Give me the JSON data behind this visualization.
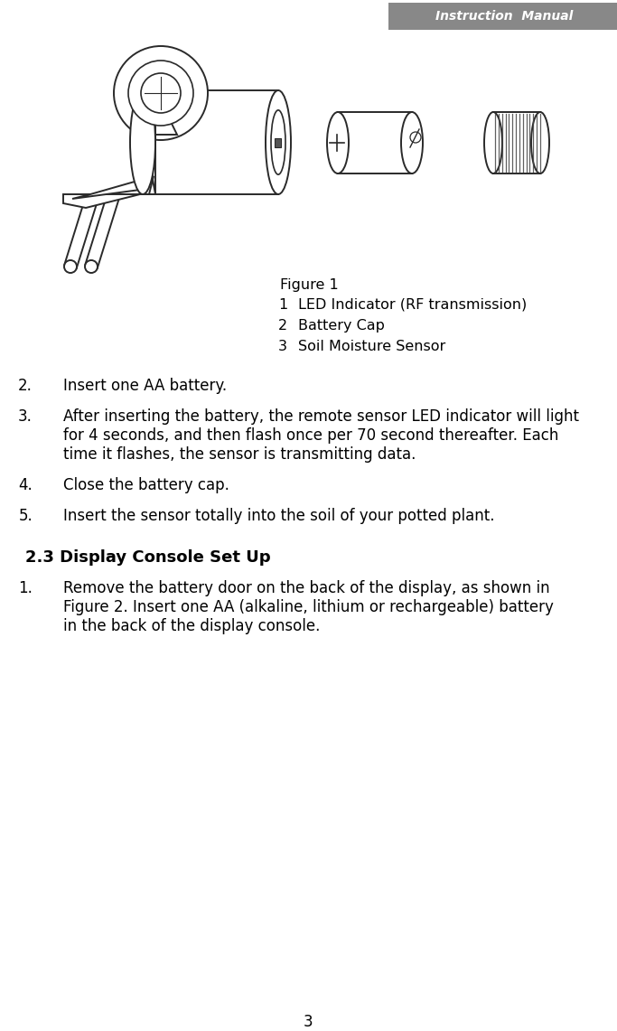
{
  "page_number": "3",
  "header_text": "Instruction  Manual",
  "header_bg": "#888888",
  "header_text_color": "#ffffff",
  "background_color": "#ffffff",
  "figure_caption": "Figure 1",
  "legend_items": [
    {
      "num": "1",
      "text": "LED Indicator (RF transmission)"
    },
    {
      "num": "2",
      "text": "Battery Cap"
    },
    {
      "num": "3",
      "text": "Soil Moisture Sensor"
    }
  ],
  "instructions": [
    {
      "num": "2.",
      "text": "Insert one AA battery."
    },
    {
      "num": "3.",
      "text": "After inserting the battery, the remote sensor LED indicator will light\nfor 4 seconds, and then flash once per 70 second thereafter. Each\ntime it flashes, the sensor is transmitting data."
    },
    {
      "num": "4.",
      "text": "Close the battery cap."
    },
    {
      "num": "5.",
      "text": "Insert the sensor totally into the soil of your potted plant."
    }
  ],
  "section_title": "2.3 Display Console Set Up",
  "section_items": [
    {
      "num": "1.",
      "text": "Remove the battery door on the back of the display, as shown in\nFigure 2. Insert one AA (alkaline, lithium or rechargeable) battery\nin the back of the display console."
    }
  ],
  "fig_width": 6.83,
  "fig_height": 11.41,
  "dpi": 100
}
